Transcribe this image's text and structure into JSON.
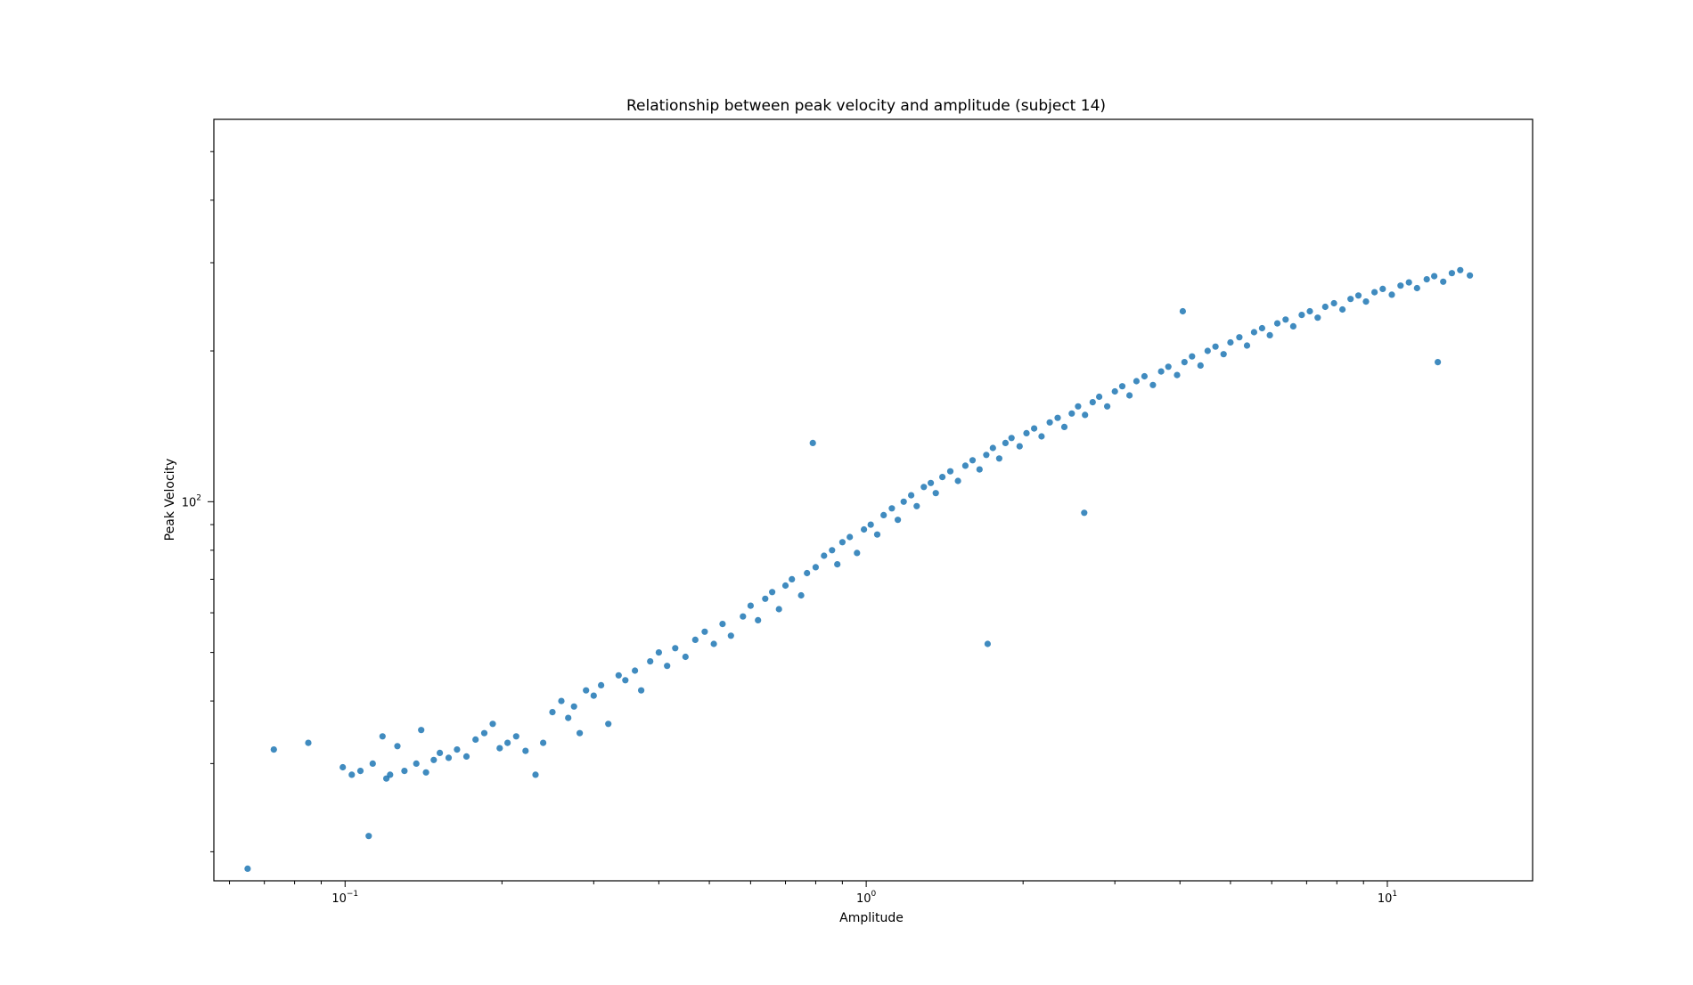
{
  "chart_data": {
    "type": "scatter",
    "title": "Relationship between peak velocity and amplitude (subject 14)",
    "xlabel": "Amplitude",
    "ylabel": "Peak Velocity",
    "xscale": "log",
    "yscale": "log",
    "xlim": [
      0.056,
      19
    ],
    "ylim": [
      17.5,
      580
    ],
    "grid": false,
    "x_ticks": [
      {
        "value": 0.1,
        "base": "10",
        "exp": "−1"
      },
      {
        "value": 1,
        "base": "10",
        "exp": "0"
      },
      {
        "value": 10,
        "base": "10",
        "exp": "1"
      }
    ],
    "y_ticks": [
      {
        "value": 100,
        "base": "10",
        "exp": "2"
      }
    ],
    "color": "#1f77b4",
    "points_sampled": [
      [
        0.065,
        18.5
      ],
      [
        0.073,
        32
      ],
      [
        0.085,
        33
      ],
      [
        0.099,
        29.5
      ],
      [
        0.103,
        28.5
      ],
      [
        0.107,
        29
      ],
      [
        0.111,
        21.5
      ],
      [
        0.113,
        30
      ],
      [
        0.118,
        34
      ],
      [
        0.12,
        28
      ],
      [
        0.122,
        28.5
      ],
      [
        0.126,
        32.5
      ],
      [
        0.13,
        29
      ],
      [
        0.137,
        30
      ],
      [
        0.14,
        35
      ],
      [
        0.143,
        28.8
      ],
      [
        0.148,
        30.5
      ],
      [
        0.152,
        31.5
      ],
      [
        0.158,
        30.8
      ],
      [
        0.164,
        32
      ],
      [
        0.171,
        31
      ],
      [
        0.178,
        33.5
      ],
      [
        0.185,
        34.5
      ],
      [
        0.192,
        36
      ],
      [
        0.198,
        32.2
      ],
      [
        0.205,
        33
      ],
      [
        0.213,
        34
      ],
      [
        0.222,
        31.8
      ],
      [
        0.232,
        28.5
      ],
      [
        0.24,
        33
      ],
      [
        0.25,
        38
      ],
      [
        0.26,
        40
      ],
      [
        0.268,
        37
      ],
      [
        0.275,
        39
      ],
      [
        0.282,
        34.5
      ],
      [
        0.29,
        42
      ],
      [
        0.3,
        41
      ],
      [
        0.31,
        43
      ],
      [
        0.32,
        36
      ],
      [
        0.335,
        45
      ],
      [
        0.345,
        44
      ],
      [
        0.36,
        46
      ],
      [
        0.37,
        42
      ],
      [
        0.385,
        48
      ],
      [
        0.4,
        50
      ],
      [
        0.415,
        47
      ],
      [
        0.43,
        51
      ],
      [
        0.45,
        49
      ],
      [
        0.47,
        53
      ],
      [
        0.49,
        55
      ],
      [
        0.51,
        52
      ],
      [
        0.53,
        57
      ],
      [
        0.55,
        54
      ],
      [
        0.58,
        59
      ],
      [
        0.6,
        62
      ],
      [
        0.62,
        58
      ],
      [
        0.64,
        64
      ],
      [
        0.66,
        66
      ],
      [
        0.68,
        61
      ],
      [
        0.7,
        68
      ],
      [
        0.72,
        70
      ],
      [
        0.75,
        65
      ],
      [
        0.77,
        72
      ],
      [
        0.8,
        74
      ],
      [
        0.79,
        131
      ],
      [
        0.83,
        78
      ],
      [
        0.86,
        80
      ],
      [
        0.88,
        75
      ],
      [
        0.9,
        83
      ],
      [
        0.93,
        85
      ],
      [
        0.96,
        79
      ],
      [
        0.99,
        88
      ],
      [
        1.02,
        90
      ],
      [
        1.05,
        86
      ],
      [
        1.08,
        94
      ],
      [
        1.12,
        97
      ],
      [
        1.15,
        92
      ],
      [
        1.18,
        100
      ],
      [
        1.22,
        103
      ],
      [
        1.25,
        98
      ],
      [
        1.29,
        107
      ],
      [
        1.33,
        109
      ],
      [
        1.36,
        104
      ],
      [
        1.4,
        112
      ],
      [
        1.45,
        115
      ],
      [
        1.5,
        110
      ],
      [
        1.55,
        118
      ],
      [
        1.6,
        121
      ],
      [
        1.65,
        116
      ],
      [
        1.71,
        52
      ],
      [
        1.7,
        124
      ],
      [
        1.75,
        128
      ],
      [
        1.8,
        122
      ],
      [
        1.85,
        131
      ],
      [
        1.9,
        134
      ],
      [
        1.97,
        129
      ],
      [
        2.03,
        137
      ],
      [
        2.1,
        140
      ],
      [
        2.17,
        135
      ],
      [
        2.25,
        144
      ],
      [
        2.33,
        147
      ],
      [
        2.4,
        141
      ],
      [
        2.48,
        150
      ],
      [
        2.55,
        155
      ],
      [
        2.62,
        95
      ],
      [
        2.63,
        149
      ],
      [
        2.72,
        158
      ],
      [
        2.8,
        162
      ],
      [
        2.9,
        155
      ],
      [
        3.0,
        166
      ],
      [
        3.1,
        170
      ],
      [
        3.2,
        163
      ],
      [
        3.3,
        174
      ],
      [
        3.42,
        178
      ],
      [
        3.55,
        171
      ],
      [
        3.68,
        182
      ],
      [
        3.8,
        186
      ],
      [
        3.95,
        179
      ],
      [
        4.08,
        190
      ],
      [
        4.22,
        195
      ],
      [
        4.05,
        240
      ],
      [
        4.38,
        187
      ],
      [
        4.52,
        200
      ],
      [
        4.68,
        204
      ],
      [
        4.85,
        197
      ],
      [
        5.0,
        208
      ],
      [
        5.2,
        213
      ],
      [
        5.38,
        205
      ],
      [
        5.55,
        218
      ],
      [
        5.75,
        222
      ],
      [
        5.95,
        215
      ],
      [
        6.15,
        227
      ],
      [
        6.38,
        231
      ],
      [
        6.6,
        224
      ],
      [
        6.85,
        236
      ],
      [
        7.1,
        240
      ],
      [
        7.35,
        233
      ],
      [
        7.6,
        245
      ],
      [
        7.9,
        249
      ],
      [
        8.2,
        242
      ],
      [
        8.5,
        254
      ],
      [
        8.8,
        258
      ],
      [
        9.1,
        251
      ],
      [
        9.45,
        262
      ],
      [
        9.8,
        266
      ],
      [
        10.2,
        259
      ],
      [
        10.6,
        270
      ],
      [
        11.0,
        274
      ],
      [
        11.4,
        267
      ],
      [
        11.9,
        278
      ],
      [
        12.3,
        282
      ],
      [
        12.8,
        275
      ],
      [
        13.3,
        286
      ],
      [
        13.8,
        290
      ],
      [
        12.5,
        190
      ],
      [
        14.4,
        283
      ]
    ]
  }
}
